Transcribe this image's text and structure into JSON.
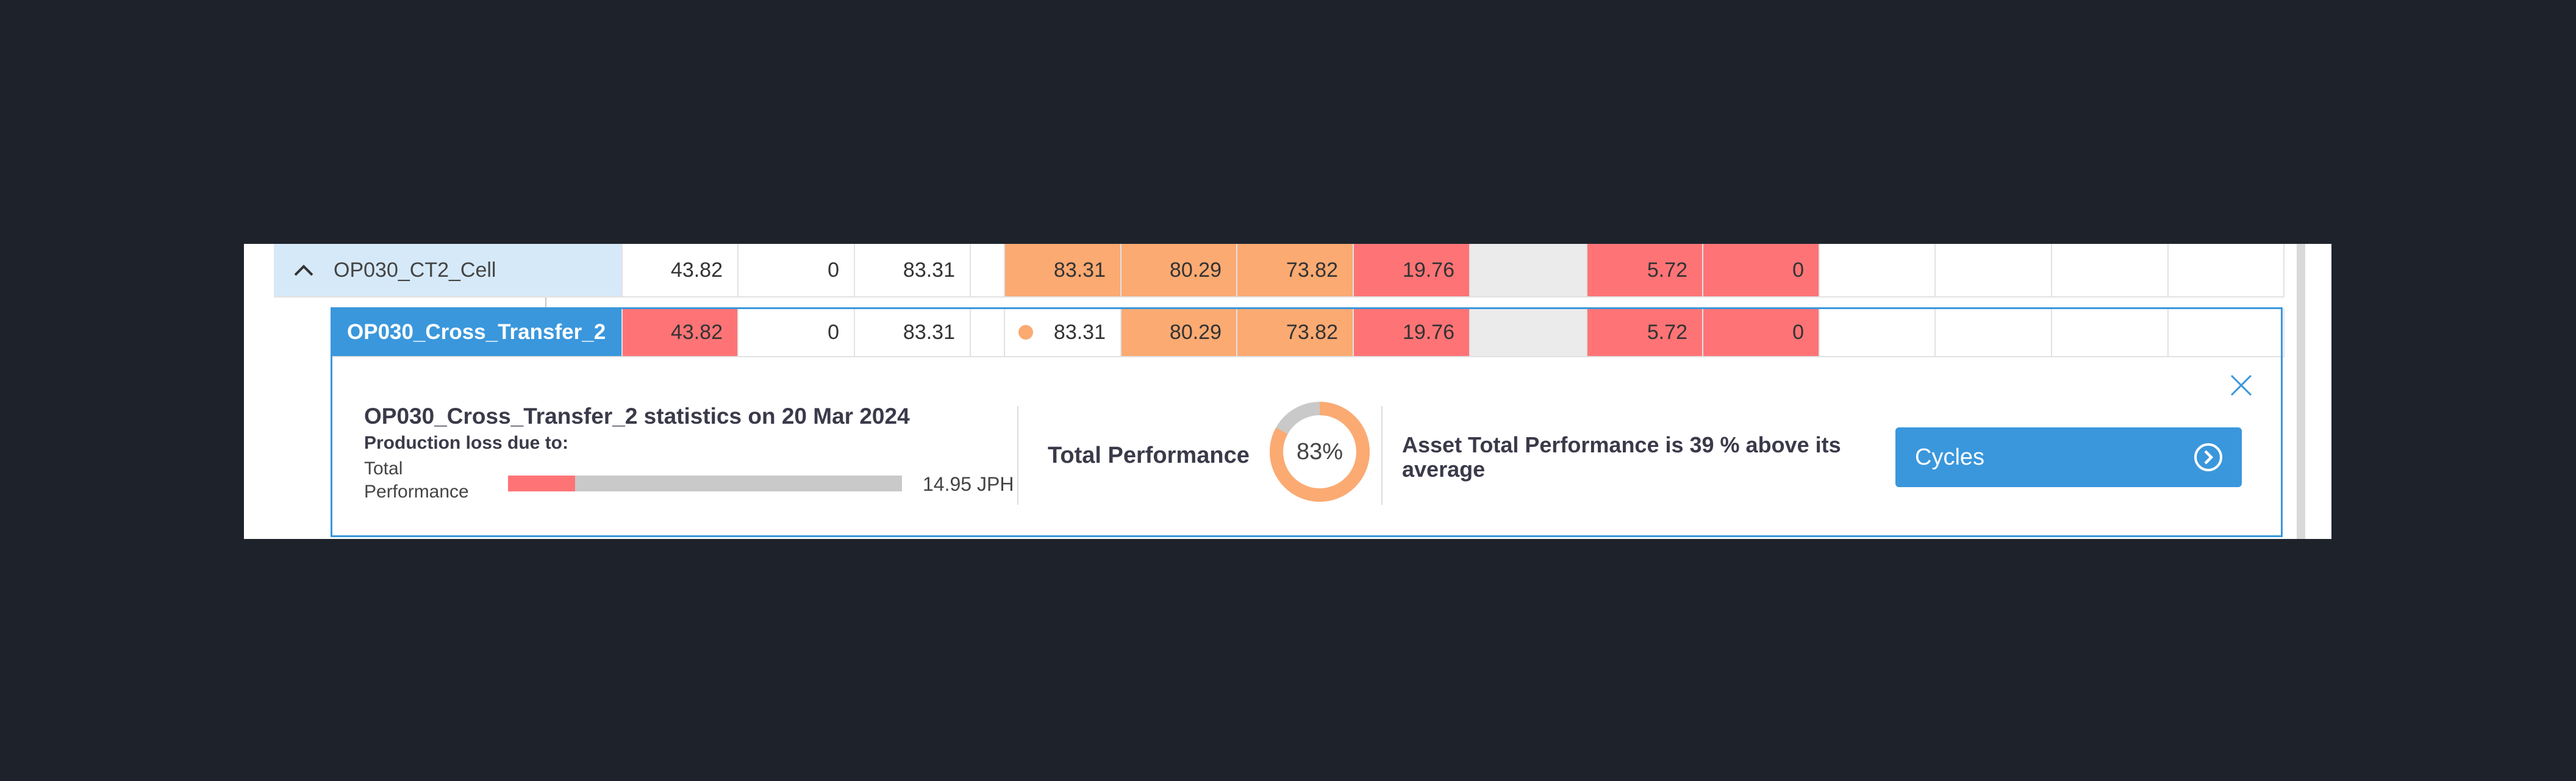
{
  "colors": {
    "background": "#1e232b",
    "accent": "#3a97dc",
    "parent_row_bg": "#d6e9f8",
    "orange": "#fbaa72",
    "red": "#fe7476",
    "grey": "#ebebeb"
  },
  "parent_row": {
    "name": "OP030_CT2_Cell",
    "toggle_icon": "chevron-up-icon",
    "values": [
      "43.82",
      "0",
      "83.31",
      "83.31",
      "80.29",
      "73.82",
      "19.76",
      "",
      "5.72",
      "0",
      "",
      "",
      "",
      ""
    ]
  },
  "child_row": {
    "name": "OP030_Cross_Transfer_2",
    "values": [
      "43.82",
      "0",
      "83.31",
      "83.31",
      "80.29",
      "73.82",
      "19.76",
      "",
      "5.72",
      "0",
      "",
      "",
      "",
      ""
    ],
    "status_dot_color": "#fbaa72"
  },
  "details": {
    "title": "OP030_Cross_Transfer_2 statistics on 20 Mar 2024",
    "loss_heading": "Production loss due to:",
    "loss_label": "Total Performance",
    "loss_fraction": 0.17,
    "loss_value": "14.95 JPH",
    "performance_label": "Total Performance",
    "performance_percent": 83,
    "performance_text": "83%",
    "asset_note": "Asset Total Performance is 39 % above its average",
    "cycles_label": "Cycles",
    "close_icon": "close-icon",
    "cycles_icon": "chevron-right-circle-icon"
  }
}
